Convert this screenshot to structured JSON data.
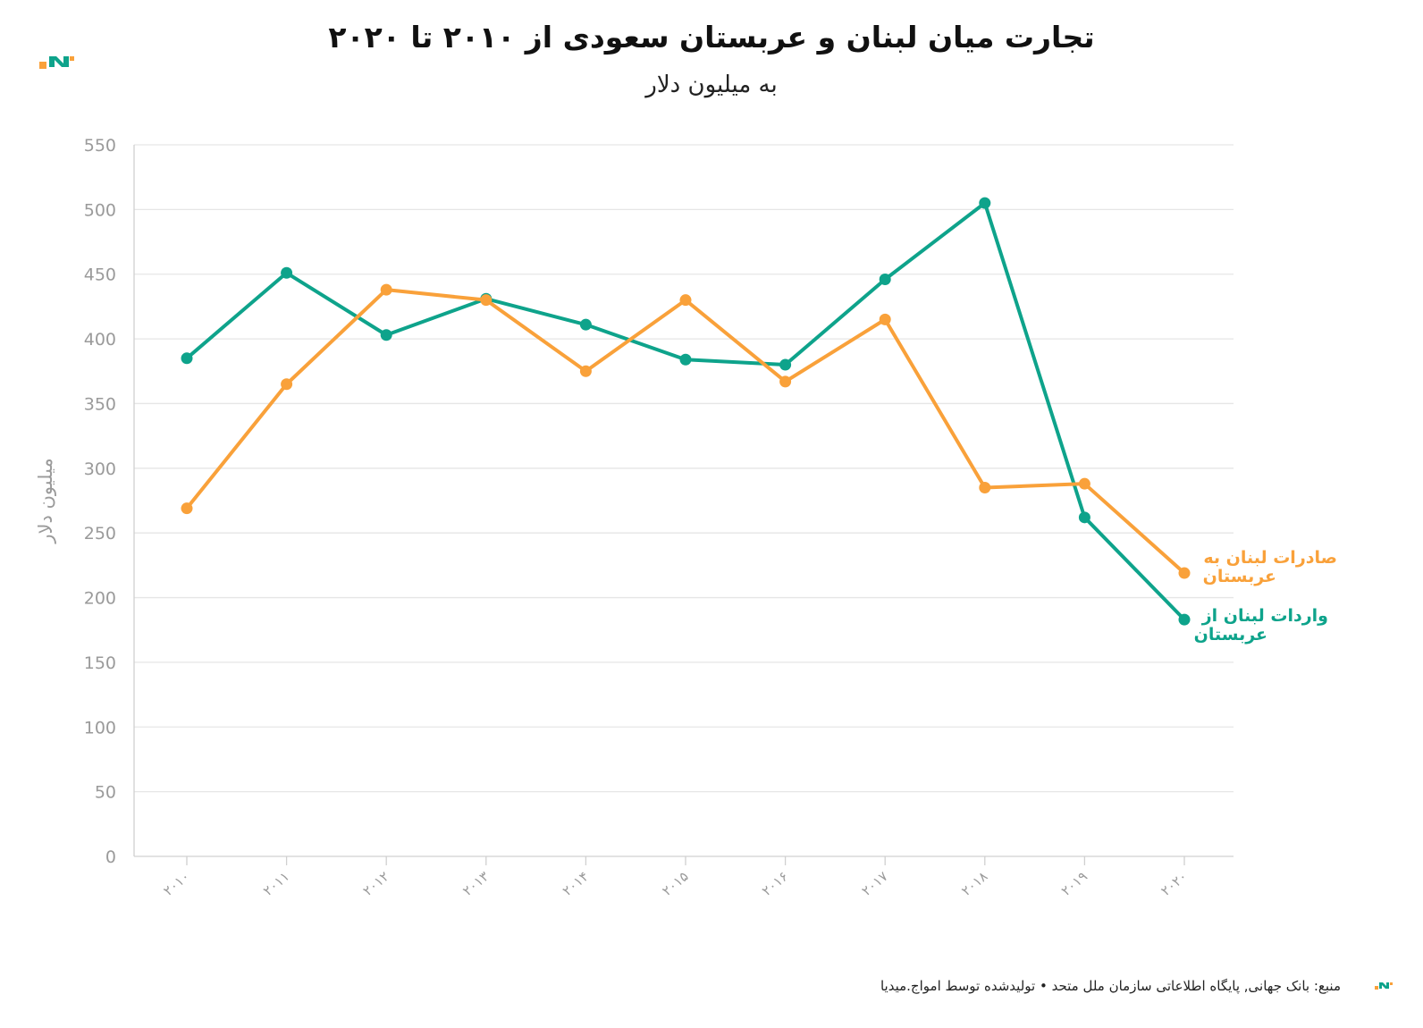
{
  "header": {
    "title": "تجارت میان لبنان و عربستان سعودی از ۲۰۱۰ تا ۲۰۲۰",
    "subtitle": "به میلیون دلار"
  },
  "footer": {
    "source": "منبع: بانک جهانی, پایگاه اطلاعاتی سازمان ملل متحد • تولیدشده توسط امواج.میدیا"
  },
  "colors": {
    "exports": "#f9a13a",
    "imports": "#0ea38b",
    "grid": "#e6e6e6",
    "axis_text": "#9a9a9a",
    "logo_orange": "#f9a13a",
    "logo_teal": "#0ea38b"
  },
  "chart_data": {
    "type": "line",
    "ylabel": "میلیون دلار",
    "ylim": [
      0,
      550
    ],
    "yticks": [
      0,
      50,
      100,
      150,
      200,
      250,
      300,
      350,
      400,
      450,
      500,
      550
    ],
    "grid": true,
    "categories": [
      "۲۰۱۰",
      "۲۰۱۱",
      "۲۰۱۲",
      "۲۰۱۳",
      "۲۰۱۴",
      "۲۰۱۵",
      "۲۰۱۶",
      "۲۰۱۷",
      "۲۰۱۸",
      "۲۰۱۹",
      "۲۰۲۰"
    ],
    "series": [
      {
        "key": "imports",
        "name": "واردات لبنان از عربستان",
        "color": "#0ea38b",
        "values": [
          385,
          451,
          403,
          431,
          411,
          384,
          380,
          446,
          505,
          262,
          183
        ]
      },
      {
        "key": "exports",
        "name": "صادرات لبنان به عربستان",
        "color": "#f9a13a",
        "values": [
          269,
          365,
          438,
          430,
          375,
          430,
          367,
          415,
          285,
          288,
          219
        ]
      }
    ]
  }
}
